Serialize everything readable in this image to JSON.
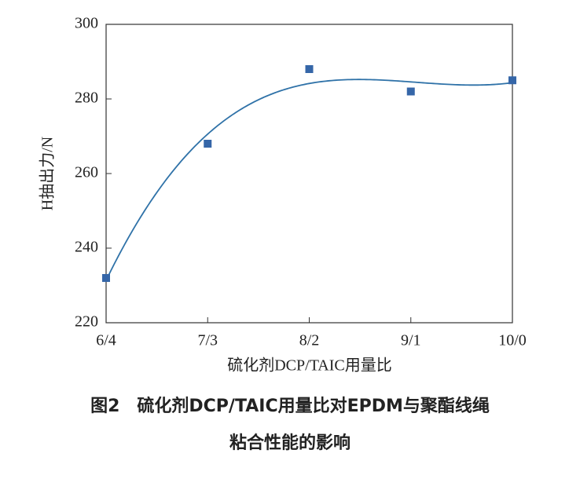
{
  "chart_data": {
    "type": "scatter",
    "x_label": "硫化剂DCP/TAIC用量比",
    "y_label": "H抽出力/N",
    "caption": [
      "图2　硫化剂DCP/TAIC用量比对EPDM与聚酯线绳",
      "粘合性能的影响"
    ],
    "categories": [
      "6/4",
      "7/3",
      "8/2",
      "9/1",
      "10/0"
    ],
    "values": [
      232,
      268,
      288,
      282,
      285
    ],
    "color": "#3566a8",
    "curve_color": "#2f72a8",
    "ylim": [
      220,
      300
    ],
    "yticks": [
      220,
      240,
      260,
      280,
      300
    ],
    "grid": false
  }
}
